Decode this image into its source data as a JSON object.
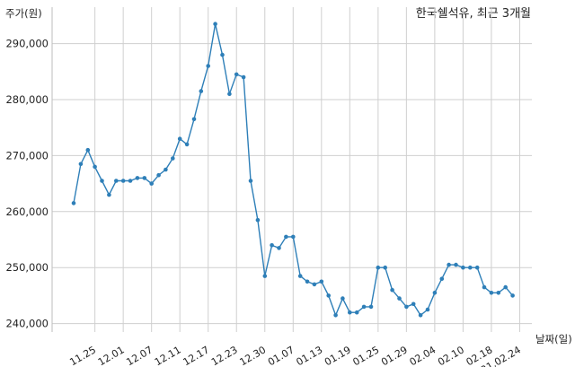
{
  "chart_data": {
    "type": "line",
    "title": "한국쉘석유, 최근 3개월",
    "ylabel": "주가(원)",
    "xlabel": "날짜(일)",
    "ylim": [
      238500,
      296500
    ],
    "yticks": [
      240000,
      250000,
      260000,
      270000,
      280000,
      290000
    ],
    "ytick_labels": [
      "240,000",
      "250,000",
      "260,000",
      "270,000",
      "280,000",
      "290,000"
    ],
    "grid": true,
    "colors": {
      "line": "#2e7fb8",
      "grid": "#cfcfcf"
    },
    "x_tick_labels": [
      {
        "label": "11.25",
        "index": 3
      },
      {
        "label": "12.01",
        "index": 7
      },
      {
        "label": "12.07",
        "index": 11
      },
      {
        "label": "12.11",
        "index": 15
      },
      {
        "label": "12.17",
        "index": 19
      },
      {
        "label": "12.23",
        "index": 23
      },
      {
        "label": "12.30",
        "index": 27
      },
      {
        "label": "01.07",
        "index": 31
      },
      {
        "label": "01.13",
        "index": 35
      },
      {
        "label": "01.19",
        "index": 39
      },
      {
        "label": "01.25",
        "index": 43
      },
      {
        "label": "01.29",
        "index": 47
      },
      {
        "label": "02.04",
        "index": 51
      },
      {
        "label": "02.10",
        "index": 55
      },
      {
        "label": "02.18",
        "index": 59
      },
      {
        "label": "21.02.24",
        "index": 63
      }
    ],
    "series": [
      {
        "values": [
          261500,
          268500,
          271000,
          268000,
          265500,
          263000,
          265500,
          265500,
          265500,
          266000,
          266000,
          265000,
          266500,
          267500,
          269500,
          273000,
          272000,
          276500,
          281500,
          286000,
          293500,
          288000,
          281000,
          284500,
          284000,
          265500,
          258500,
          248500,
          254000,
          253500,
          255500,
          255500,
          248500,
          247500,
          247000,
          247500,
          245000,
          241500,
          244500,
          242000,
          242000,
          243000,
          243000,
          250000,
          250000,
          246000,
          244500,
          243000,
          243500,
          241500,
          242500,
          245500,
          248000,
          250500,
          250500,
          250000,
          250000,
          250000,
          246500,
          245500,
          245500,
          246500,
          245000
        ]
      }
    ]
  }
}
